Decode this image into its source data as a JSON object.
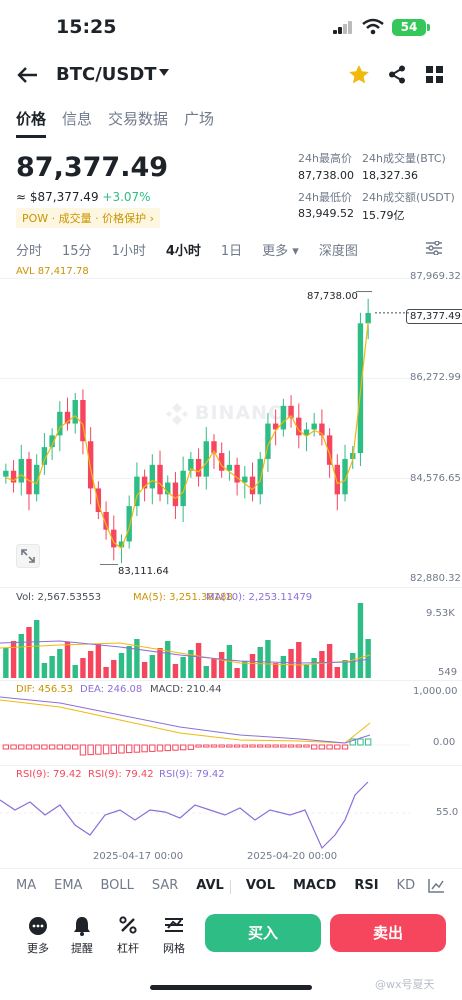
{
  "status_bar": {
    "time": "15:25",
    "battery": "54"
  },
  "header": {
    "pair": "BTC/USDT"
  },
  "tabs": [
    "价格",
    "信息",
    "交易数据",
    "广场"
  ],
  "ticker": {
    "price": "87,377.49",
    "price_usd": "≈ $87,377.49",
    "change_pct": "+3.07%",
    "tags": "POW · 成交量 · 价格保护 ›",
    "stats": [
      {
        "label": "24h最高价",
        "value": "87,738.00"
      },
      {
        "label": "24h成交量(BTC)",
        "value": "18,327.36"
      },
      {
        "label": "24h最低价",
        "value": "83,949.52"
      },
      {
        "label": "24h成交额(USDT)",
        "value": "15.79亿"
      }
    ]
  },
  "intervals": [
    "分时",
    "15分",
    "1小时",
    "4小时",
    "1日",
    "更多 ▾",
    "深度图"
  ],
  "active_interval": "4小时",
  "chart": {
    "avl": "AVL 87,417.78",
    "y_ticks": [
      "87,969.32",
      "86,272.99",
      "84,576.65",
      "82,880.32"
    ],
    "high_marker": "87,738.00",
    "low_marker": "83,111.64",
    "current_price": "87,377.49",
    "watermark": "BINANCE",
    "colors": {
      "up": "#2ebd85",
      "down": "#f6465d",
      "ma": "#f0b90b",
      "ma10": "#8c6fd8"
    }
  },
  "volume": {
    "label": "Vol: 2,567.53553",
    "ma5": "MA(5): 3,251.38188",
    "ma10": "MA(10): 2,253.11479",
    "y_ticks": [
      "9.53K",
      "549"
    ]
  },
  "macd": {
    "dif": "DIF: 456.53",
    "dea": "DEA: 246.08",
    "macd": "MACD: 210.44",
    "y_ticks": [
      "1,000.00",
      "0.00"
    ]
  },
  "rsi": {
    "labels": [
      "RSI(9): 79.42",
      "RSI(9): 79.42",
      "RSI(9): 79.42"
    ],
    "y_tick": "55.0"
  },
  "x_dates": [
    "2025-04-17 00:00",
    "2025-04-20 00:00"
  ],
  "indicator_tabs": [
    "MA",
    "EMA",
    "BOLL",
    "SAR",
    "AVL",
    "VOL",
    "MACD",
    "RSI",
    "KD"
  ],
  "bottom_nav": [
    "更多",
    "提醒",
    "杠杆",
    "网格"
  ],
  "actions": {
    "buy": "买入",
    "sell": "卖出"
  },
  "watermark_credit": "@wx号夏天"
}
